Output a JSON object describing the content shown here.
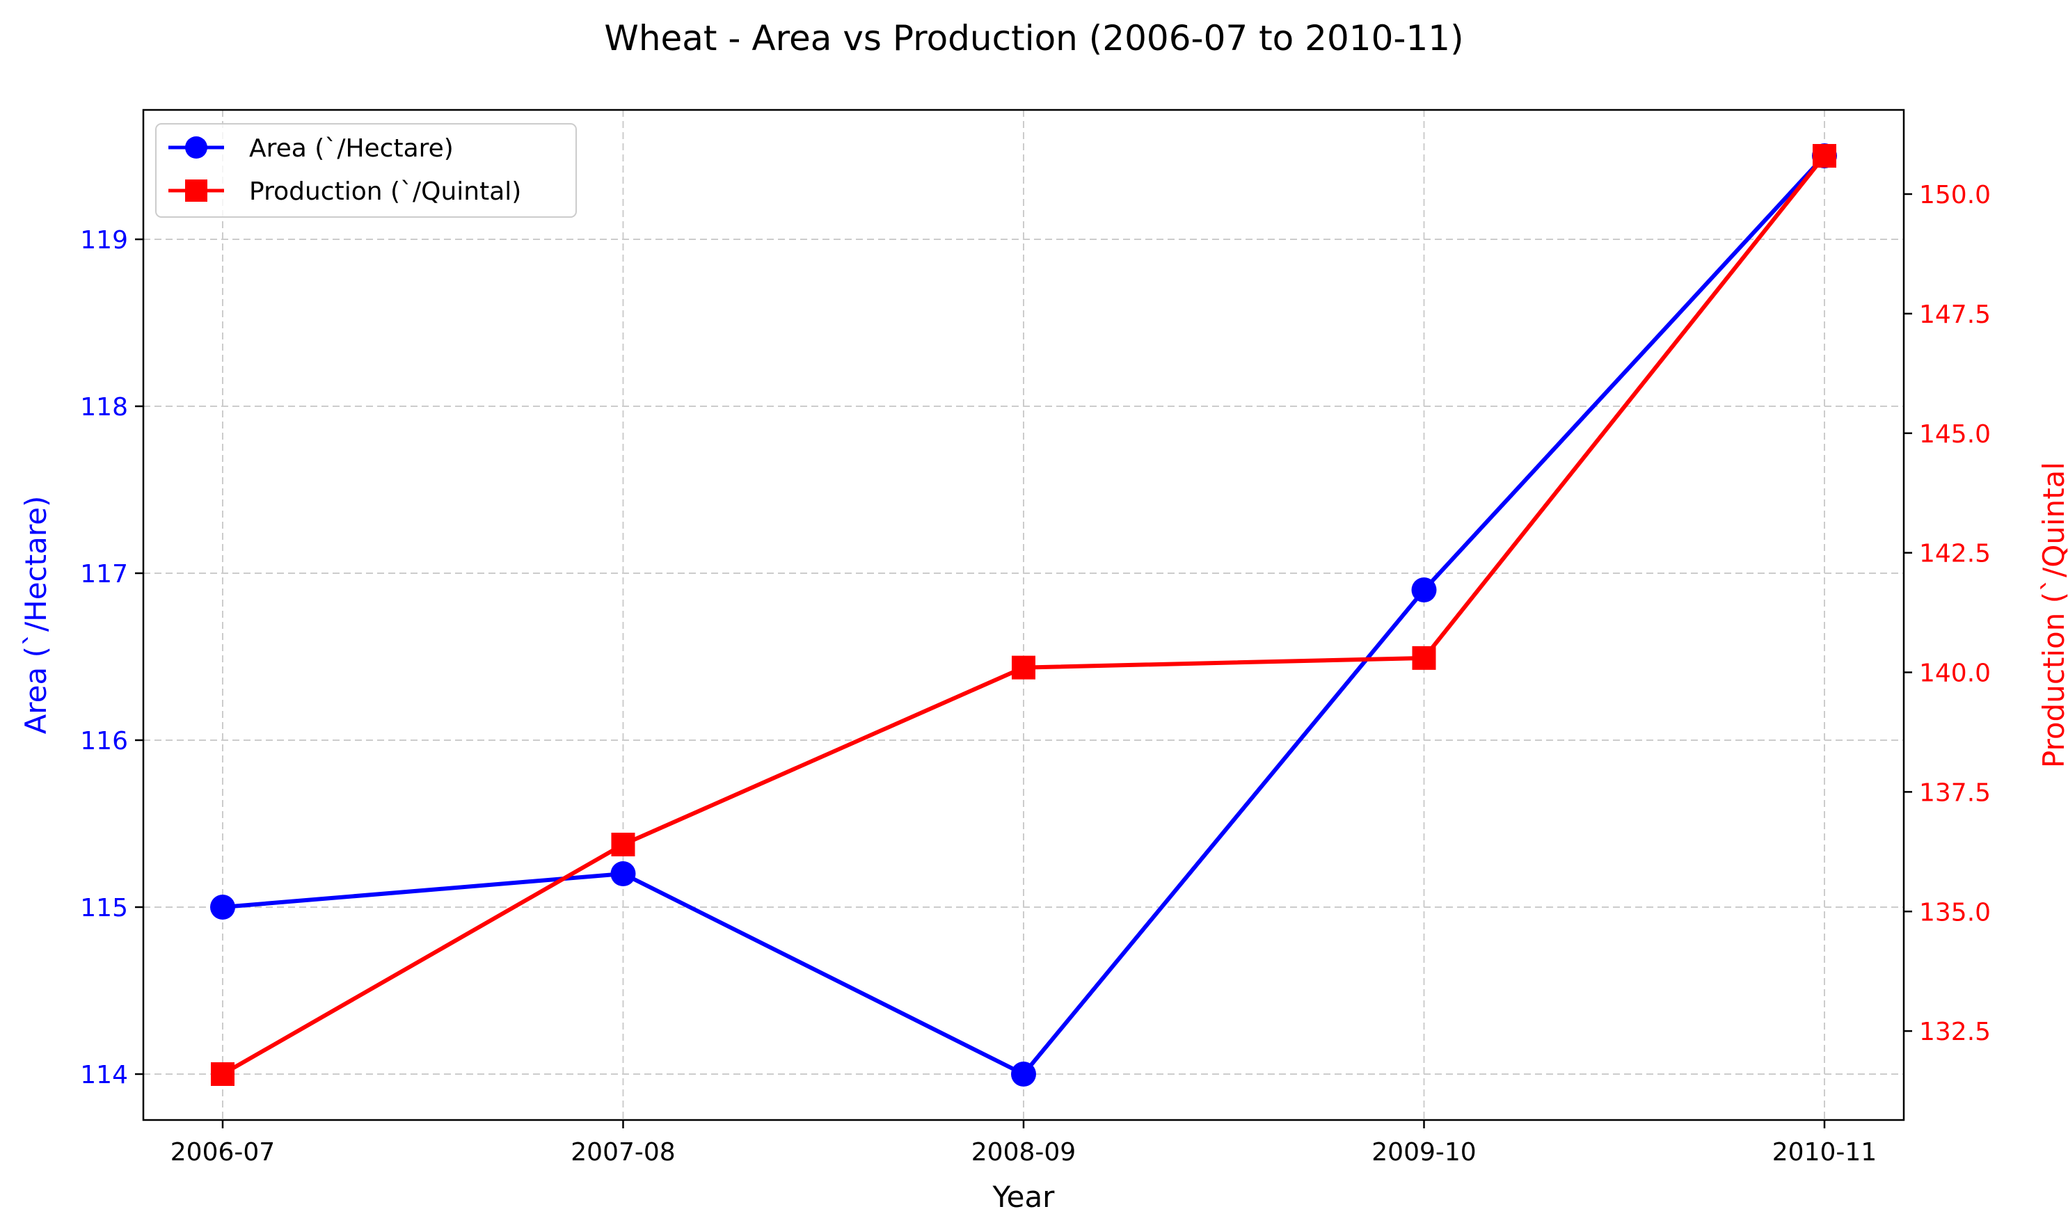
{
  "chart_data": {
    "type": "line",
    "title": "Wheat - Area vs Production (2006-07 to 2010-11)",
    "xlabel": "Year",
    "categories": [
      "2006-07",
      "2007-08",
      "2008-09",
      "2009-10",
      "2010-11"
    ],
    "grid": true,
    "legend_position": "top-left",
    "series": [
      {
        "name": "Area (`/Hectare)",
        "axis": "left",
        "marker": "circle",
        "color": "#0000ff",
        "values": [
          115.0,
          115.2,
          114.0,
          116.9,
          119.5
        ]
      },
      {
        "name": "Production (`/Quintal)",
        "axis": "right",
        "marker": "square",
        "color": "#ff0000",
        "values": [
          131.6,
          136.4,
          140.1,
          140.3,
          150.8
        ]
      }
    ],
    "y_left": {
      "label": "Area (`/Hectare)",
      "color": "#0000ff",
      "ticks": [
        "114",
        "115",
        "116",
        "117",
        "118",
        "119"
      ],
      "tick_values": [
        114,
        115,
        116,
        117,
        118,
        119
      ],
      "ylim": [
        113.725,
        119.775
      ]
    },
    "y_right": {
      "label": "Production (`/Quintal",
      "color": "#ff0000",
      "ticks": [
        "132.5",
        "135.0",
        "137.5",
        "140.0",
        "142.5",
        "145.0",
        "147.5",
        "150.0"
      ],
      "tick_values": [
        132.5,
        135.0,
        137.5,
        140.0,
        142.5,
        145.0,
        147.5,
        150.0
      ],
      "ylim": [
        130.64,
        151.76
      ]
    }
  }
}
